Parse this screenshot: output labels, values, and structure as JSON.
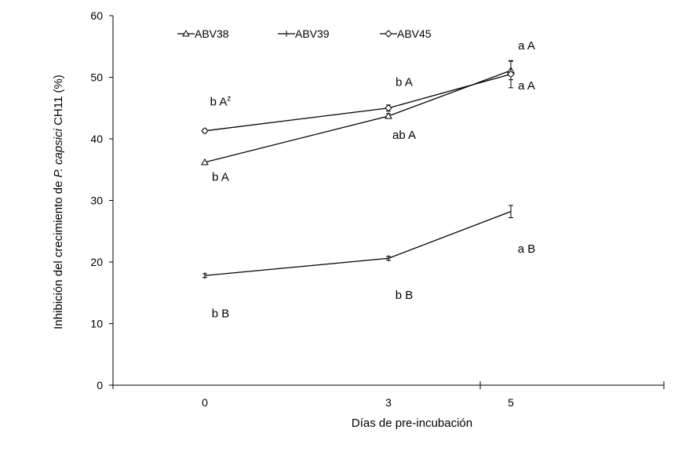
{
  "chart_data": {
    "type": "line",
    "title": "",
    "xlabel": "Días de pre-incubación",
    "ylabel_prefix": "Inhibición del crecimiento de ",
    "ylabel_italic": "P. capsici",
    "ylabel_suffix": " CH11 (%)",
    "x": [
      0,
      3,
      5
    ],
    "xlim": [
      -1.5,
      7.5
    ],
    "x_mid_ticks": [
      -1.5,
      4.5,
      7.5
    ],
    "ylim": [
      0,
      60
    ],
    "yticks": [
      0,
      10,
      20,
      30,
      40,
      50,
      60
    ],
    "grid": false,
    "legend_position": "top-left",
    "series": [
      {
        "name": "ABV38",
        "marker": "triangle",
        "values": [
          36.2,
          43.7,
          51.1
        ],
        "err": [
          0,
          0.4,
          1.5
        ]
      },
      {
        "name": "ABV39",
        "marker": "dash",
        "values": [
          17.8,
          20.6,
          28.2
        ],
        "err": [
          0.3,
          0.3,
          1.0
        ]
      },
      {
        "name": "ABV45",
        "marker": "diamond",
        "values": [
          41.3,
          45.0,
          50.5
        ],
        "err": [
          0.3,
          0.5,
          2.2
        ]
      }
    ],
    "annotations": [
      {
        "text": "b A",
        "sup": "z",
        "x": 0,
        "y": 45.4
      },
      {
        "text": "b A",
        "sup": "",
        "x": 0,
        "y": 33.2
      },
      {
        "text": "b B",
        "sup": "",
        "x": 0,
        "y": 11.0
      },
      {
        "text": "b A",
        "sup": "",
        "x": 3,
        "y": 48.6
      },
      {
        "text": "ab A",
        "sup": "",
        "x": 3,
        "y": 40.0
      },
      {
        "text": "b B",
        "sup": "",
        "x": 3,
        "y": 14.0
      },
      {
        "text": "a A",
        "sup": "",
        "x": 5,
        "y": 54.5
      },
      {
        "text": "a A",
        "sup": "",
        "x": 5,
        "y": 48.0
      },
      {
        "text": "a B",
        "sup": "",
        "x": 5,
        "y": 21.5
      }
    ]
  }
}
